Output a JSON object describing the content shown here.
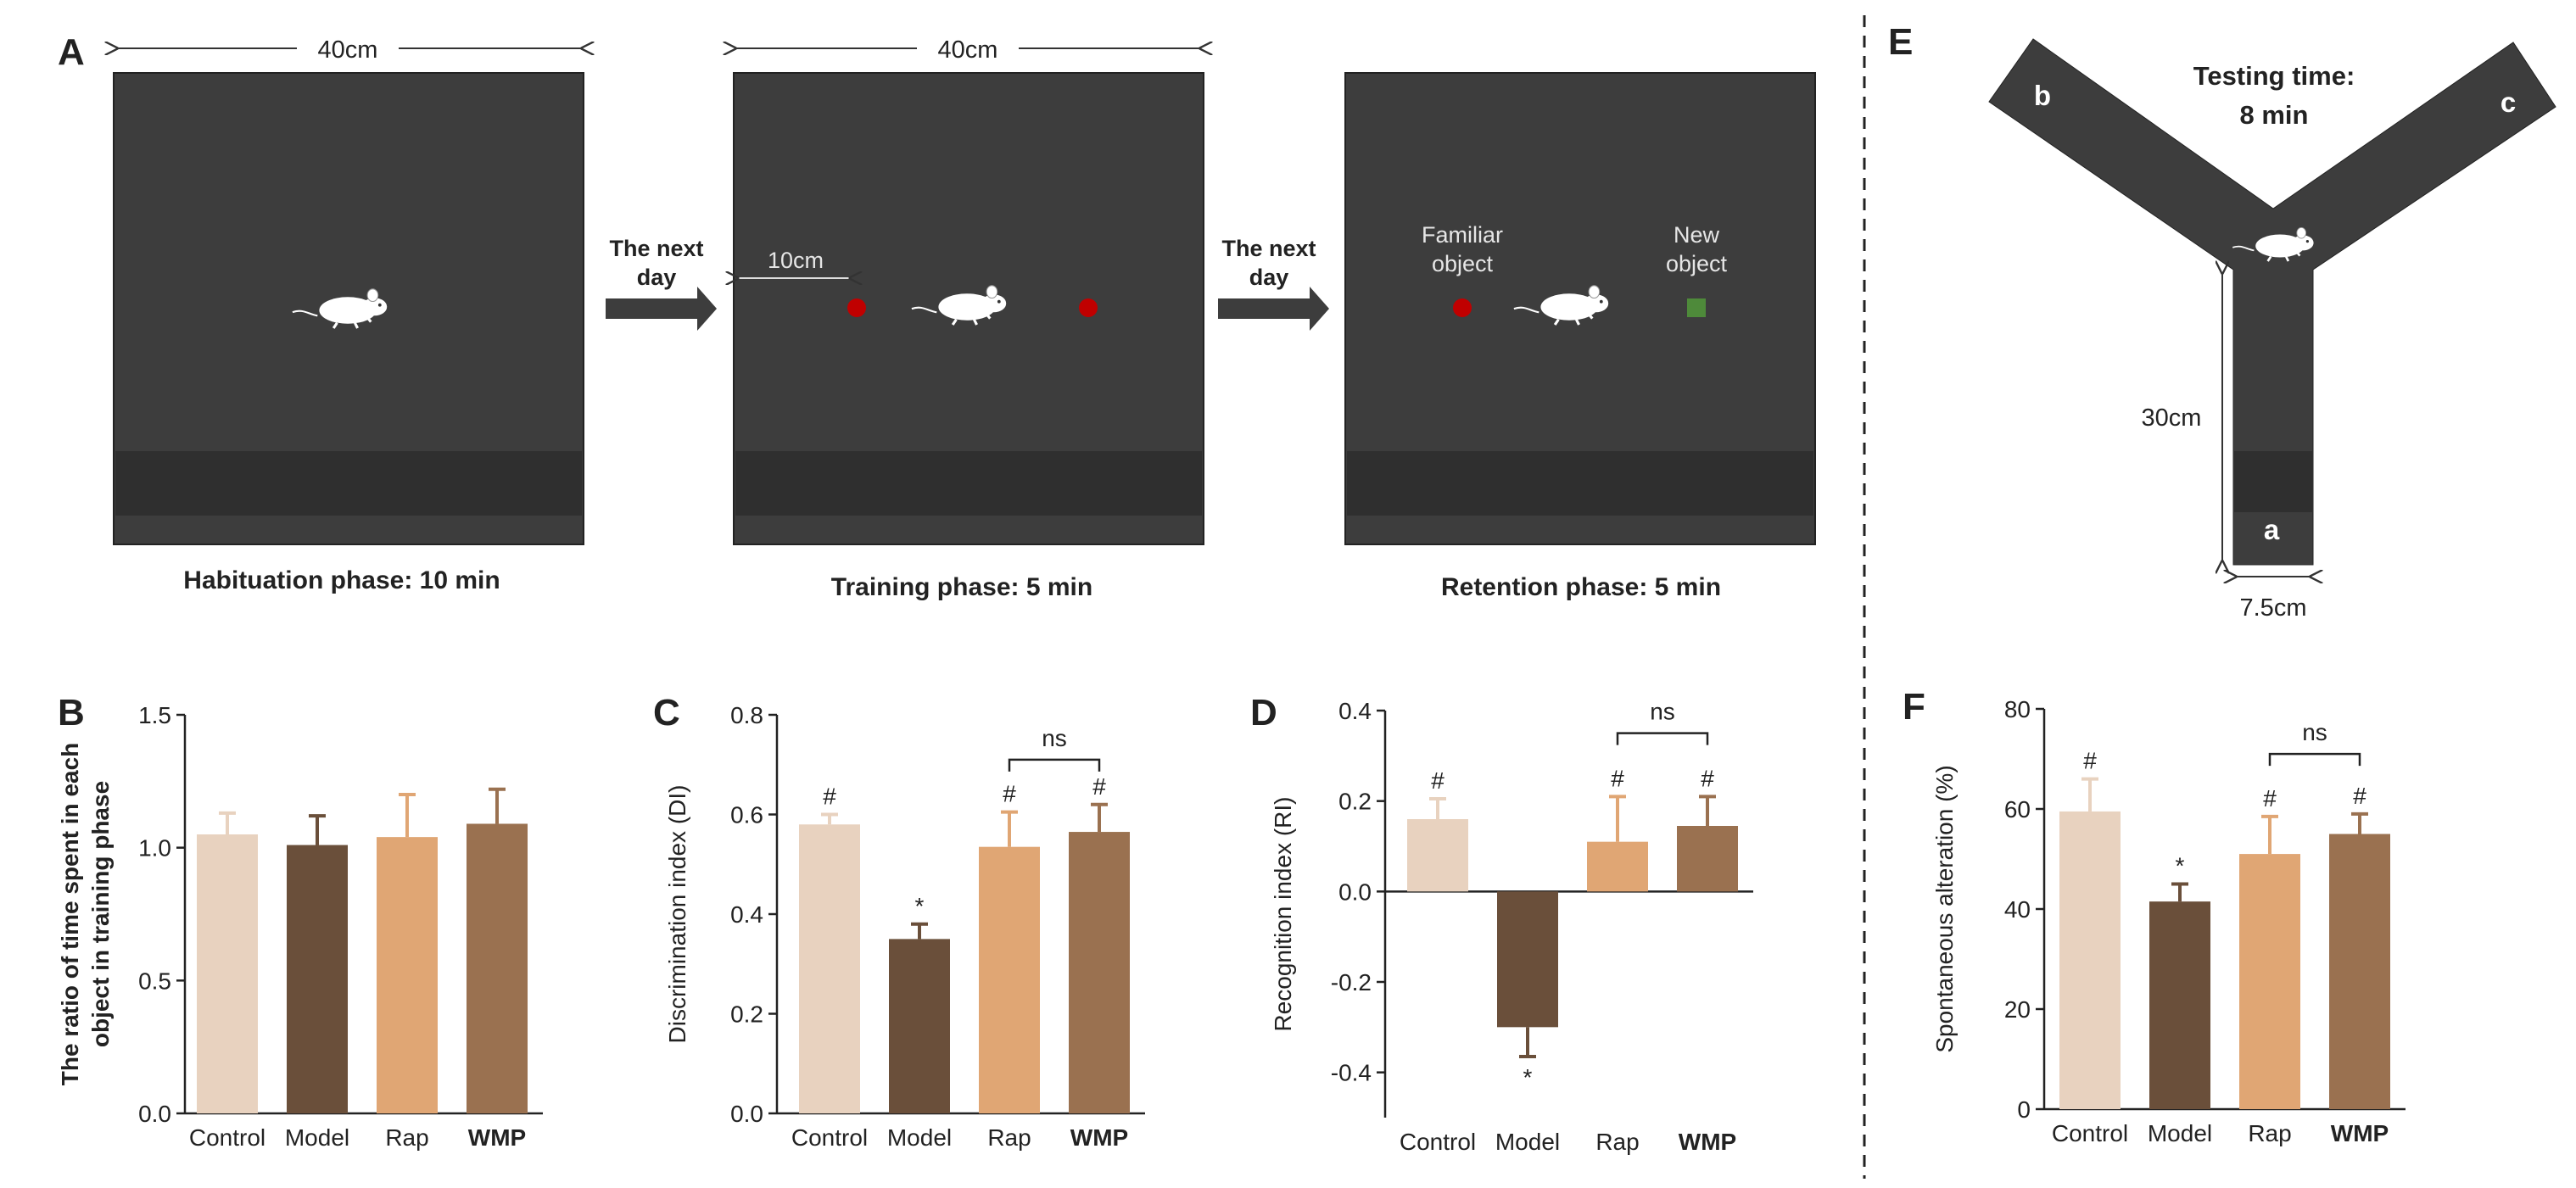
{
  "colors": {
    "arena": "#3d3d3d",
    "arena_floor": "#2f2f2f",
    "familiar_object": "#c00000",
    "new_object": "#4e8a3a",
    "mouse": "#ffffff"
  },
  "panel_a": {
    "label": "A",
    "width_label_1": "40cm",
    "width_label_2": "40cm",
    "distance_label": "10cm",
    "arrow_1_text": [
      "The next",
      "day"
    ],
    "arrow_2_text": [
      "The next",
      "day"
    ],
    "familiar_label": [
      "Familiar",
      "object"
    ],
    "new_label": [
      "New",
      "object"
    ],
    "phase_1": "Habituation phase: 10 min",
    "phase_2": "Training phase: 5 min",
    "phase_3": "Retention phase: 5 min"
  },
  "panel_e": {
    "label": "E",
    "testing_time": [
      "Testing time:",
      "8 min"
    ],
    "arm_a": "a",
    "arm_b": "b",
    "arm_c": "c",
    "length_label": "30cm",
    "width_label": "7.5cm"
  },
  "chart_data": [
    {
      "panel": "B",
      "type": "bar",
      "categories": [
        "Control",
        "Model",
        "Rap",
        "WMP"
      ],
      "values": [
        1.05,
        1.01,
        1.04,
        1.09
      ],
      "errors": [
        0.08,
        0.11,
        0.16,
        0.13
      ],
      "colors": [
        "#e8d2bf",
        "#6a4f3a",
        "#e0a674",
        "#9a7150"
      ],
      "ylabel": [
        "The ratio of time spent in each",
        "object in training phase"
      ],
      "ylim": [
        0.0,
        1.5
      ],
      "yticks": [
        0.0,
        0.5,
        1.0,
        1.5
      ],
      "ytick_labels": [
        "0.0",
        "0.5",
        "1.0",
        "1.5"
      ],
      "above_labels": [
        "",
        "",
        "",
        ""
      ],
      "below_labels": [
        "",
        "",
        "",
        ""
      ],
      "bracket": null
    },
    {
      "panel": "C",
      "type": "bar",
      "categories": [
        "Control",
        "Model",
        "Rap",
        "WMP"
      ],
      "values": [
        0.58,
        0.35,
        0.535,
        0.565
      ],
      "errors": [
        0.02,
        0.03,
        0.07,
        0.055
      ],
      "colors": [
        "#e8d2bf",
        "#6a4f3a",
        "#e0a674",
        "#9a7150"
      ],
      "ylabel": [
        "Discrimination index (DI)"
      ],
      "ylim": [
        0.0,
        0.8
      ],
      "yticks": [
        0.0,
        0.2,
        0.4,
        0.6,
        0.8
      ],
      "ytick_labels": [
        "0.0",
        "0.2",
        "0.4",
        "0.6",
        "0.8"
      ],
      "above_labels": [
        "#",
        "*",
        "#",
        "#"
      ],
      "below_labels": [
        "",
        "",
        "",
        ""
      ],
      "bracket": {
        "from": 2,
        "to": 3,
        "value": 0.71,
        "label": "ns"
      }
    },
    {
      "panel": "D",
      "type": "bar",
      "categories": [
        "Control",
        "Model",
        "Rap",
        "WMP"
      ],
      "values": [
        0.16,
        -0.3,
        0.11,
        0.145
      ],
      "errors": [
        0.045,
        0.065,
        0.1,
        0.065
      ],
      "colors": [
        "#e8d2bf",
        "#6a4f3a",
        "#e0a674",
        "#9a7150"
      ],
      "ylabel": [
        "Recognition index (RI)"
      ],
      "ylim": [
        -0.5,
        0.4
      ],
      "yticks": [
        -0.4,
        -0.2,
        0.0,
        0.2,
        0.4
      ],
      "ytick_labels": [
        "-0.4",
        "-0.2",
        "0.0",
        "0.2",
        "0.4"
      ],
      "above_labels": [
        "#",
        "",
        "#",
        "#"
      ],
      "below_labels": [
        "",
        "*",
        "",
        ""
      ],
      "bracket": {
        "from": 2,
        "to": 3,
        "value": 0.35,
        "label": "ns"
      }
    },
    {
      "panel": "F",
      "type": "bar",
      "categories": [
        "Control",
        "Model",
        "Rap",
        "WMP"
      ],
      "values": [
        59.5,
        41.5,
        51.0,
        55.0
      ],
      "errors": [
        6.5,
        3.5,
        7.5,
        4.0
      ],
      "colors": [
        "#e8d2bf",
        "#6a4f3a",
        "#e0a674",
        "#9a7150"
      ],
      "ylabel": [
        "Spontaneous alteration (%)"
      ],
      "ylim": [
        0,
        80
      ],
      "yticks": [
        0,
        20,
        40,
        60,
        80
      ],
      "ytick_labels": [
        "0",
        "20",
        "40",
        "60",
        "80"
      ],
      "above_labels": [
        "#",
        "*",
        "#",
        "#"
      ],
      "below_labels": [
        "",
        "",
        "",
        ""
      ],
      "bracket": {
        "from": 2,
        "to": 3,
        "value": 71,
        "label": "ns"
      }
    }
  ]
}
